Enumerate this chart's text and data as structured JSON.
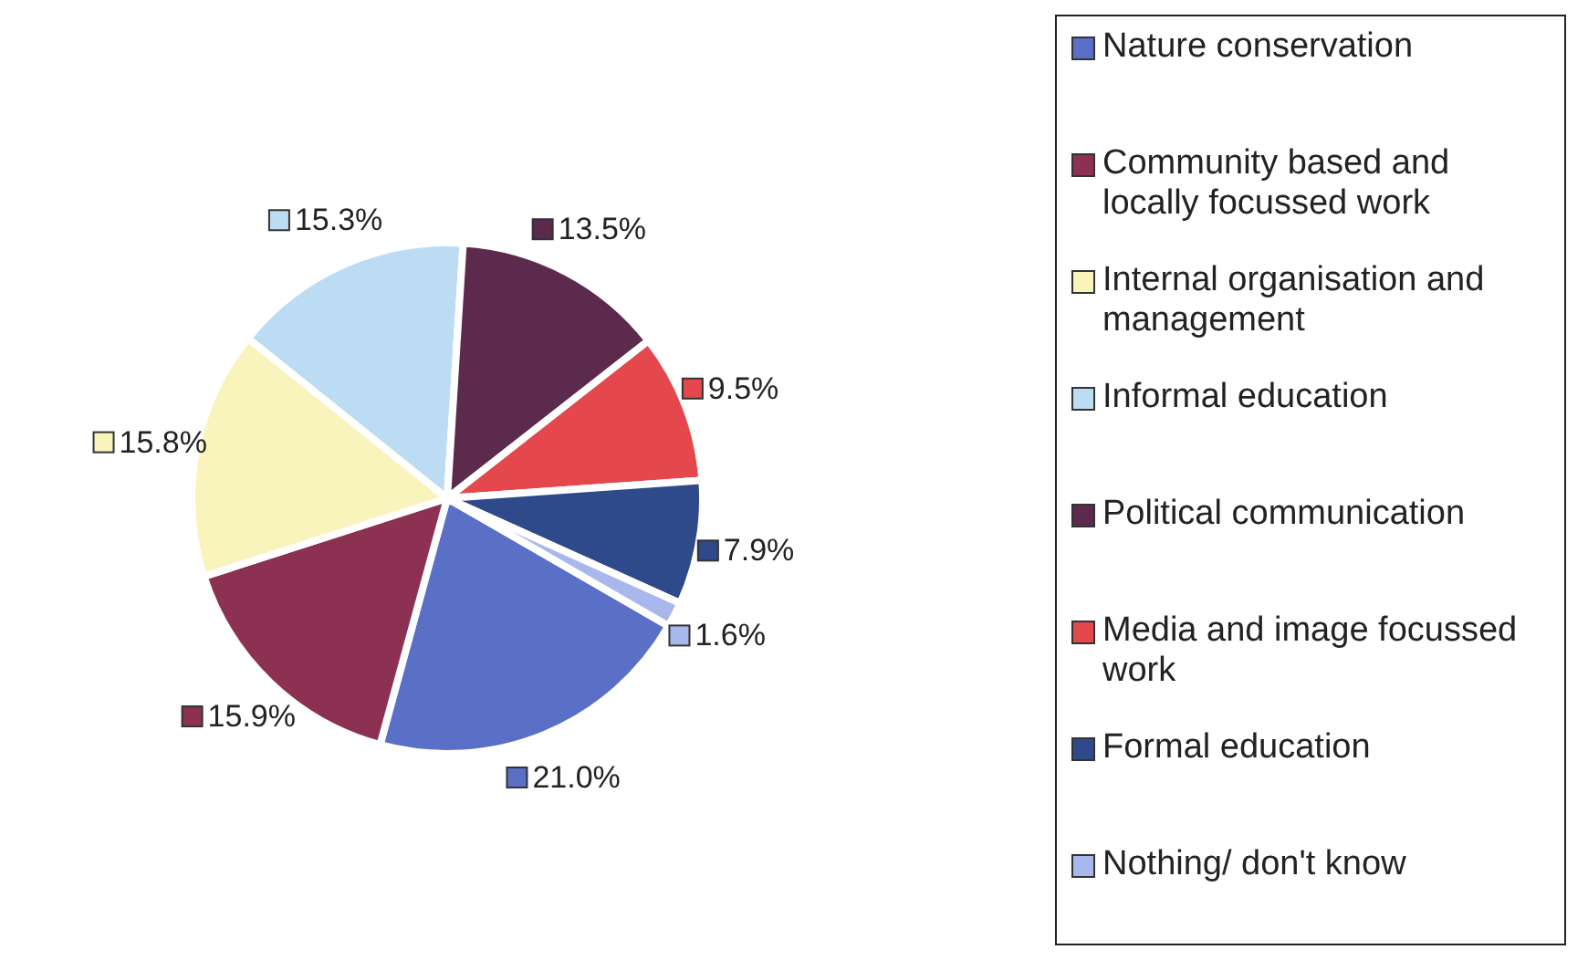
{
  "chart_data": {
    "type": "pie",
    "categories": [
      "Nature conservation",
      "Community based and locally focussed work",
      "Internal organisation and management",
      "Informal education",
      "Political communication",
      "Media and image focussed work",
      "Formal education",
      "Nothing/ don't know"
    ],
    "values": [
      21.0,
      15.9,
      15.8,
      15.3,
      13.5,
      9.5,
      7.9,
      1.6
    ],
    "value_labels": [
      "21.0%",
      "15.9%",
      "15.8%",
      "15.3%",
      "13.5%",
      "9.5%",
      "7.9%",
      "1.6%"
    ],
    "colors": [
      "#5a6fc6",
      "#8c3152",
      "#f8f4bc",
      "#bcdcf4",
      "#5c2a4c",
      "#e4484c",
      "#2f4a8a",
      "#a8b8ec"
    ],
    "legend": "right"
  }
}
